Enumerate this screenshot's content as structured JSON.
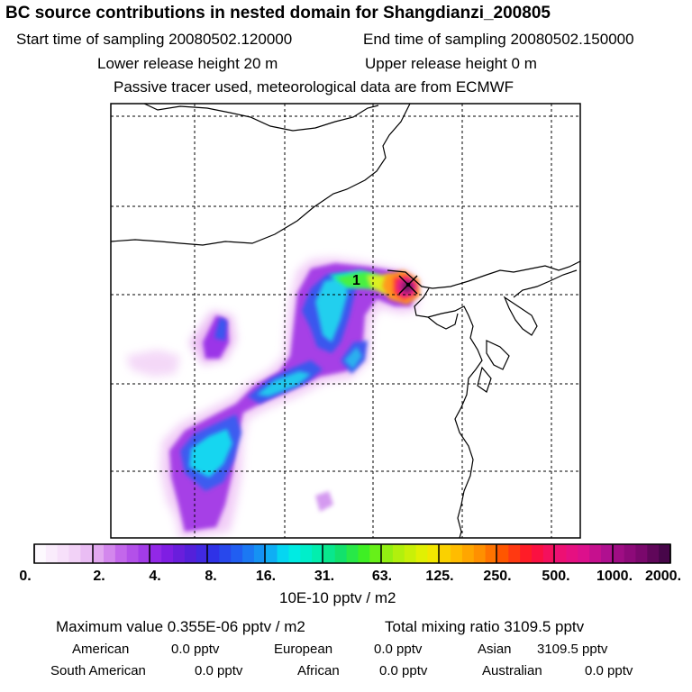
{
  "header": {
    "title": "BC  source contributions in nested domain for Shangdianzi_200805",
    "start_time": "Start time of sampling 20080502.120000",
    "end_time": "End time of sampling 20080502.150000",
    "lower_release": "Lower release height   20 m",
    "upper_release": "Upper release height    0 m",
    "tracer_note": "Passive tracer used, meteorological data are from ECMWF"
  },
  "map": {
    "site_marker_label": "1"
  },
  "colorbar": {
    "tick_labels": [
      "0.",
      "2.",
      "4.",
      "8.",
      "16.",
      "31.",
      "63.",
      "125.",
      "250.",
      "500.",
      "1000.",
      "2000."
    ],
    "unit_label": "10E-10 pptv / m2"
  },
  "summary": {
    "max_value": "Maximum value  0.355E-06 pptv / m2",
    "total_mixing": "Total mixing ratio     3109.5 pptv",
    "american_label": "American",
    "american_value": "0.0 pptv",
    "european_label": "European",
    "european_value": "0.0 pptv",
    "asian_label": "Asian",
    "asian_value": "3109.5 pptv",
    "south_american_label": "South American",
    "south_american_value": "0.0 pptv",
    "african_label": "African",
    "african_value": "0.0 pptv",
    "australian_label": "Australian",
    "australian_value": "0.0 pptv"
  }
}
